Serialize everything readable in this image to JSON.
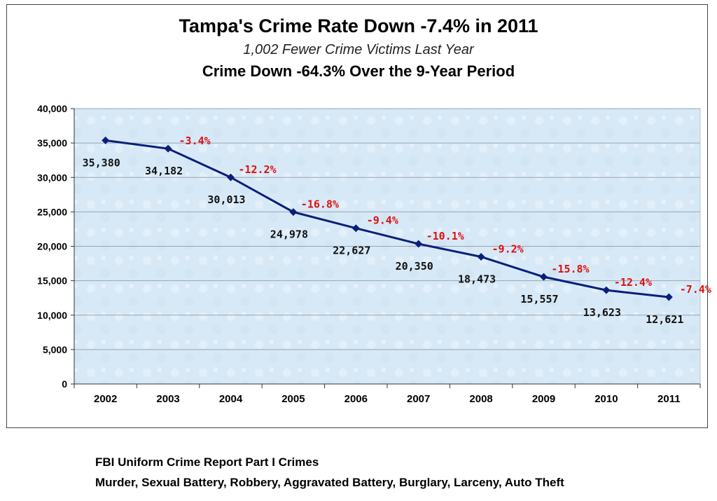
{
  "chart_data": {
    "type": "line",
    "title": "Tampa's Crime Rate Down -7.4% in 2011",
    "subtitle": "1,002 Fewer Crime Victims Last Year",
    "subtitle2": "Crime Down -64.3% Over the 9-Year Period",
    "categories": [
      "2002",
      "2003",
      "2004",
      "2005",
      "2006",
      "2007",
      "2008",
      "2009",
      "2010",
      "2011"
    ],
    "series": [
      {
        "values": [
          35380,
          34182,
          30013,
          24978,
          22627,
          20350,
          18473,
          15557,
          13623,
          12621
        ]
      }
    ],
    "value_labels": [
      "35,380",
      "34,182",
      "30,013",
      "24,978",
      "22,627",
      "20,350",
      "18,473",
      "15,557",
      "13,623",
      "12,621"
    ],
    "change_labels": [
      "-3.4%",
      "-12.2%",
      "-16.8%",
      "-9.4%",
      "-10.1%",
      "-9.2%",
      "-15.8%",
      "-12.4%",
      "-7.4%"
    ],
    "ylim": [
      0,
      40000
    ],
    "yticks": [
      0,
      5000,
      10000,
      15000,
      20000,
      25000,
      30000,
      35000,
      40000
    ],
    "ytick_labels": [
      "0",
      "5,000",
      "10,000",
      "15,000",
      "20,000",
      "25,000",
      "30,000",
      "35,000",
      "40,000"
    ],
    "grid": true,
    "legend": "none",
    "colors": {
      "line": "#0a1f7a",
      "change": "#e01010",
      "plot_bg": "#d9ebf8",
      "grid": "#9aa4b0"
    }
  },
  "footer": {
    "line1": "FBI Uniform Crime Report Part I Crimes",
    "line2": "Murder, Sexual Battery, Robbery, Aggravated Battery, Burglary, Larceny, Auto Theft"
  }
}
